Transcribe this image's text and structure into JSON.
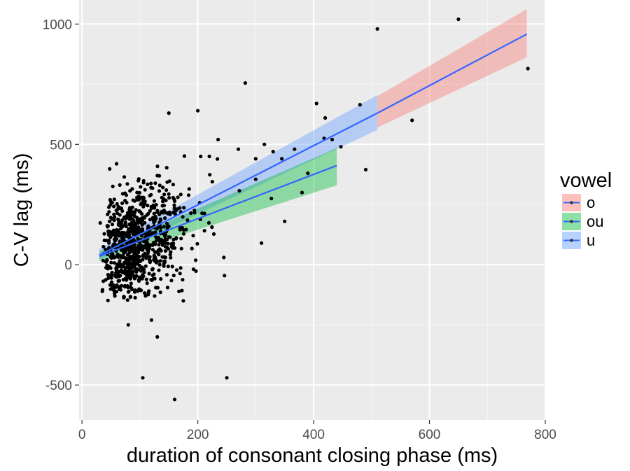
{
  "chart_data": {
    "type": "scatter",
    "title": "",
    "xlabel": "duration of consonant closing phase (ms)",
    "ylabel": "C-V lag (ms)",
    "xlim": [
      -5,
      800
    ],
    "ylim": [
      -645,
      1100
    ],
    "x_ticks": [
      0,
      200,
      400,
      600,
      800
    ],
    "y_ticks": [
      -500,
      0,
      500,
      1000
    ],
    "x_tick_labels": [
      "0",
      "200",
      "400",
      "600",
      "800"
    ],
    "y_tick_labels": [
      "-500",
      "0",
      "500",
      "1000"
    ],
    "grid": true,
    "panel_background": "#ebebeb",
    "legend": {
      "title": "vowel",
      "position": "right",
      "entries": [
        {
          "label": "o",
          "fill": "#f8766d"
        },
        {
          "label": "ou",
          "fill": "#00ba38"
        },
        {
          "label": "u",
          "fill": "#619cff"
        }
      ]
    },
    "line_color": "#3366ff",
    "point_color": "#000000",
    "fits": [
      {
        "group": "u",
        "fill": "#619cff",
        "x": [
          30,
          510
        ],
        "y": [
          40,
          630
        ],
        "band_lo": [
          20,
          560
        ],
        "band_hi": [
          65,
          705
        ]
      },
      {
        "group": "o",
        "fill": "#f8766d",
        "x": [
          510,
          768
        ],
        "y": [
          630,
          958
        ],
        "band_lo": [
          570,
          862
        ],
        "band_hi": [
          700,
          1062
        ]
      },
      {
        "group": "ou",
        "fill": "#00ba38",
        "x": [
          30,
          440
        ],
        "y": [
          35,
          412
        ],
        "band_lo": [
          15,
          330
        ],
        "band_hi": [
          55,
          485
        ]
      }
    ],
    "outliers": [
      [
        650,
        1020
      ],
      [
        510,
        980
      ],
      [
        770,
        815
      ],
      [
        570,
        600
      ],
      [
        480,
        665
      ],
      [
        490,
        395
      ],
      [
        282,
        755
      ],
      [
        300,
        355
      ],
      [
        310,
        90
      ],
      [
        350,
        180
      ],
      [
        345,
        440
      ],
      [
        380,
        300
      ],
      [
        405,
        670
      ],
      [
        418,
        525
      ],
      [
        432,
        520
      ],
      [
        447,
        490
      ],
      [
        420,
        610
      ],
      [
        330,
        470
      ],
      [
        300,
        440
      ],
      [
        270,
        480
      ],
      [
        250,
        -470
      ],
      [
        160,
        -560
      ],
      [
        105,
        -470
      ],
      [
        120,
        -230
      ],
      [
        80,
        -250
      ],
      [
        130,
        -300
      ],
      [
        175,
        -150
      ],
      [
        245,
        30
      ],
      [
        225,
        345
      ],
      [
        205,
        450
      ],
      [
        315,
        500
      ],
      [
        327,
        275
      ],
      [
        390,
        380
      ],
      [
        367,
        480
      ],
      [
        150,
        630
      ],
      [
        200,
        640
      ],
      [
        220,
        450
      ],
      [
        235,
        520
      ]
    ]
  }
}
